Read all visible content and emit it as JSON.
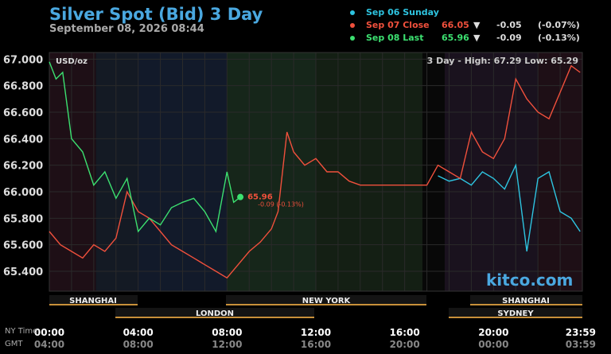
{
  "header": {
    "title": "Silver Spot (Bid) 3 Day",
    "subtitle": "September 08, 2026 08:44"
  },
  "legend": [
    {
      "label": "Sep 06 Sunday",
      "price": "",
      "arrow": "",
      "change": "",
      "pct": "",
      "color": "#2ec4e0"
    },
    {
      "label": "Sep 07 Close",
      "price": "66.05",
      "arrow": "▼",
      "change": "-0.05",
      "pct": "(-0.07%)",
      "color": "#f0503c"
    },
    {
      "label": "Sep 08 Last",
      "price": "65.96",
      "arrow": "▼",
      "change": "-0.09",
      "pct": "(-0.13%)",
      "color": "#3ce070"
    }
  ],
  "logo": "kitco.com",
  "time_labels": {
    "ny": "NY Time",
    "gmt": "GMT"
  },
  "chart_data": {
    "type": "line",
    "unit_label": "USD/oz",
    "range_text": "3 Day - High: 67.29  Low: 65.29",
    "ylim": [
      65.25,
      67.05
    ],
    "yticks": [
      "67.000",
      "66.800",
      "66.600",
      "66.400",
      "66.200",
      "66.000",
      "65.800",
      "65.600",
      "65.400"
    ],
    "xticks_ny": [
      "00:00",
      "04:00",
      "08:00",
      "12:00",
      "16:00",
      "20:00",
      "23:59"
    ],
    "xticks_gmt": [
      "04:00",
      "08:00",
      "12:00",
      "16:00",
      "20:00",
      "00:00",
      "03:59"
    ],
    "sessions": [
      "SHANGHAI",
      "LONDON",
      "NEW YORK",
      "SHANGHAI",
      "SYDNEY"
    ],
    "last_marker": {
      "price": "65.96",
      "change": "-0.09 (-0.13%)"
    },
    "series": [
      {
        "name": "Sep 06 Sunday",
        "color": "#2ec4e0",
        "x": [
          17.5,
          18,
          18.5,
          19,
          19.5,
          20,
          20.5,
          21,
          21.5,
          22,
          22.5,
          23,
          23.5,
          23.9
        ],
        "y": [
          66.12,
          66.08,
          66.1,
          66.05,
          66.15,
          66.1,
          66.02,
          66.2,
          65.55,
          66.1,
          66.15,
          65.85,
          65.8,
          65.7
        ]
      },
      {
        "name": "Sep 07 Close",
        "color": "#f0503c",
        "x": [
          0,
          0.5,
          1,
          1.5,
          2,
          2.5,
          3,
          3.5,
          4,
          4.5,
          5,
          5.5,
          6,
          6.5,
          7,
          7.5,
          8,
          8.5,
          9,
          9.5,
          10,
          10.3,
          10.7,
          11,
          11.5,
          12,
          12.5,
          13,
          13.5,
          14,
          14.5,
          15,
          16,
          17,
          17.5,
          18,
          18.5,
          19,
          19.5,
          20,
          20.5,
          21,
          21.5,
          22,
          22.5,
          23,
          23.5,
          23.9
        ],
        "y": [
          65.7,
          65.6,
          65.55,
          65.5,
          65.6,
          65.55,
          65.65,
          66.0,
          65.85,
          65.8,
          65.7,
          65.6,
          65.55,
          65.5,
          65.45,
          65.4,
          65.35,
          65.45,
          65.55,
          65.62,
          65.72,
          65.85,
          66.45,
          66.3,
          66.2,
          66.25,
          66.15,
          66.15,
          66.08,
          66.05,
          66.05,
          66.05,
          66.05,
          66.05,
          66.2,
          66.15,
          66.1,
          66.45,
          66.3,
          66.25,
          66.4,
          66.85,
          66.7,
          66.6,
          66.55,
          66.75,
          66.95,
          66.9
        ]
      },
      {
        "name": "Sep 08 Last",
        "color": "#3ce070",
        "x": [
          0,
          0.3,
          0.6,
          1,
          1.5,
          2,
          2.5,
          3,
          3.5,
          4,
          4.5,
          5,
          5.5,
          6,
          6.5,
          7,
          7.5,
          8,
          8.3,
          8.6
        ],
        "y": [
          66.98,
          66.85,
          66.9,
          66.4,
          66.3,
          66.05,
          66.15,
          65.95,
          66.1,
          65.7,
          65.8,
          65.75,
          65.88,
          65.92,
          65.95,
          65.85,
          65.7,
          66.15,
          65.92,
          65.96
        ]
      }
    ]
  }
}
